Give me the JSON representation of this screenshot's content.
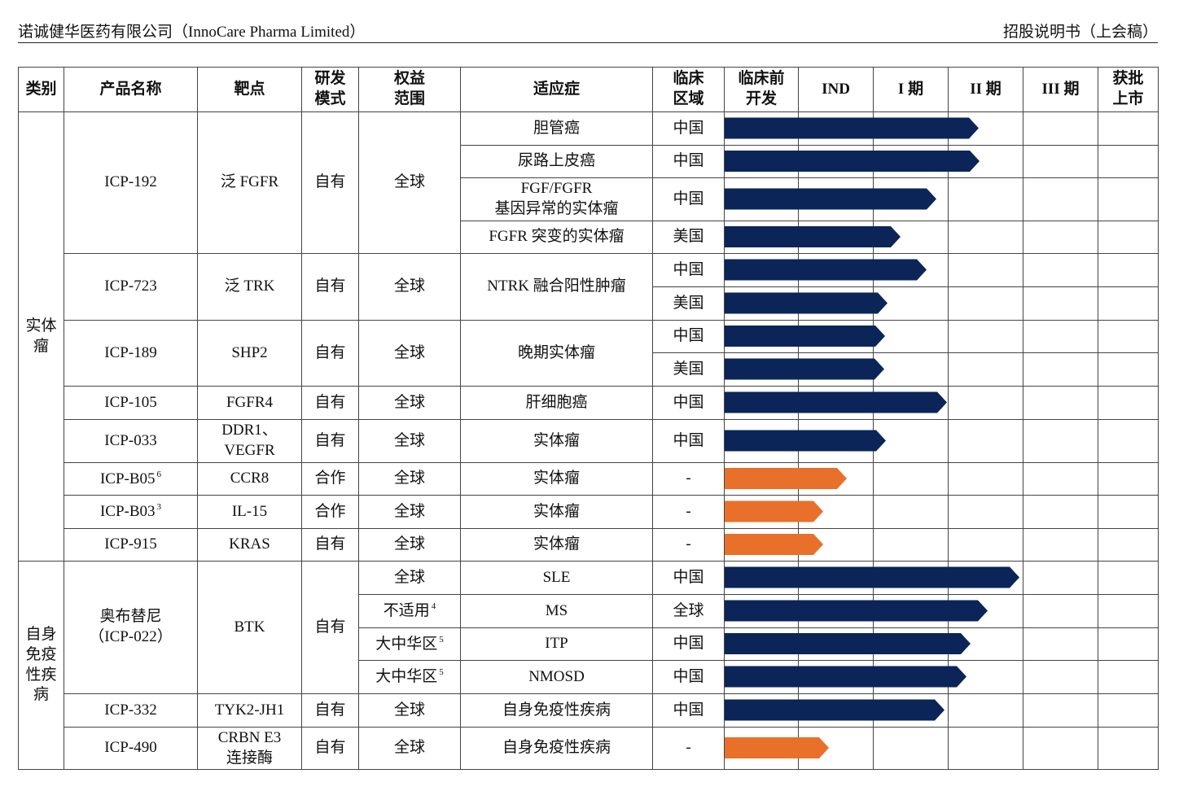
{
  "header": {
    "left": "诺诚健华医药有限公司（InnoCare Pharma Limited）",
    "right": "招股说明书（上会稿）"
  },
  "table": {
    "columns": [
      "类别",
      "产品名称",
      "靶点",
      "研发\n模式",
      "权益\n范围",
      "适应症",
      "临床\n区域",
      "临床前\n开发",
      "IND",
      "I 期",
      "II 期",
      "III 期",
      "获批\n上市"
    ],
    "rows": [
      [
        "实体\n瘤",
        "ICP-192",
        "泛 FGFR",
        "自有",
        "全球",
        "胆管癌",
        "中国"
      ],
      [
        "尿路上皮癌",
        "中国"
      ],
      [
        "FGF/FGFR\n基因异常的实体瘤",
        "中国"
      ],
      [
        "FGFR 突变的实体瘤",
        "美国"
      ],
      [
        "ICP-723",
        "泛 TRK",
        "自有",
        "全球",
        "NTRK 融合阳性肿瘤",
        "中国"
      ],
      [
        "美国"
      ],
      [
        "ICP-189",
        "SHP2",
        "自有",
        "全球",
        "晚期实体瘤",
        "中国"
      ],
      [
        "美国"
      ],
      [
        "ICP-105",
        "FGFR4",
        "自有",
        "全球",
        "肝细胞癌",
        "中国"
      ],
      [
        "ICP-033",
        "DDR1、\nVEGFR",
        "自有",
        "全球",
        "实体瘤",
        "中国"
      ],
      [
        {
          "text": "ICP-B05",
          "note": "6"
        },
        "CCR8",
        "合作",
        "全球",
        "实体瘤",
        "-"
      ],
      [
        {
          "text": "ICP-B03",
          "note": "3"
        },
        "IL-15",
        "合作",
        "全球",
        "实体瘤",
        "-"
      ],
      [
        "ICP-915",
        "KRAS",
        "自有",
        "全球",
        "实体瘤",
        "-"
      ],
      [
        "自身\n免疫\n性疾\n病",
        "奥布替尼\n（ICP-022）",
        "BTK",
        "自有",
        "全球",
        "SLE",
        "中国"
      ],
      [
        {
          "text": "不适用",
          "note": "4"
        },
        "MS",
        "全球"
      ],
      [
        {
          "text": "大中华区",
          "note": "5"
        },
        "ITP",
        "中国"
      ],
      [
        {
          "text": "大中华区",
          "note": "5"
        },
        "NMOSD",
        "中国"
      ],
      [
        "ICP-332",
        "TYK2-JH1",
        "自有",
        "全球",
        "自身免疫性疾病",
        "中国"
      ],
      [
        "ICP-490",
        "CRBN E3\n连接酶",
        "自有",
        "全球",
        "自身免疫性疾病",
        "-"
      ]
    ]
  }
}
